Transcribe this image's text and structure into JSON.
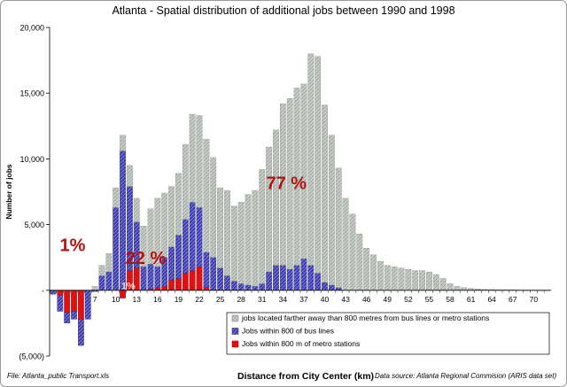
{
  "chart_data": {
    "type": "bar",
    "title": "Atlanta - Spatial distribution of additional jobs between 1990 and 1998",
    "xlabel": "Distance from City Center (km)",
    "ylabel": "Number of jobs",
    "ylim": [
      -5000,
      20000
    ],
    "yticks": [
      -5000,
      0,
      5000,
      10000,
      15000,
      20000
    ],
    "ytick_labels": [
      "(5,000)",
      "-",
      "5,000",
      "10,000",
      "15,000",
      "20,000"
    ],
    "xtick_labels": [
      "7",
      "10",
      "13",
      "16",
      "19",
      "22",
      "25",
      "28",
      "31",
      "34",
      "37",
      "40",
      "43",
      "46",
      "49",
      "52",
      "55",
      "58",
      "61",
      "64",
      "67",
      "70"
    ],
    "x_first_labeled_index": 6,
    "x_label_step": 3,
    "grid": false,
    "legend_position": "bottom-right",
    "stacked": true,
    "series": [
      {
        "name": "jobs located farther away than 800 metres from bus lines or metro stations",
        "color": "#c2c8c2",
        "values": [
          0,
          0,
          0,
          0,
          0,
          0,
          300,
          800,
          1400,
          1500,
          1200,
          1600,
          1800,
          3100,
          4200,
          5200,
          4900,
          4600,
          4700,
          5700,
          6700,
          7000,
          8600,
          7600,
          6100,
          6500,
          5700,
          6200,
          6900,
          7300,
          8700,
          9500,
          10300,
          12300,
          13000,
          13500,
          13300,
          16100,
          16500,
          13500,
          11400,
          9100,
          7000,
          5800,
          4300,
          3200,
          2700,
          2200,
          1900,
          1800,
          1700,
          1600,
          1500,
          1500,
          1400,
          1200,
          900,
          500,
          300,
          200,
          150,
          100,
          80,
          60,
          50,
          40,
          30,
          20,
          10,
          10,
          10,
          10
        ]
      },
      {
        "name": "Jobs within 800 of bus lines",
        "color": "#3b3aa6",
        "values": [
          -300,
          -1200,
          -800,
          -600,
          -2000,
          -2200,
          -100,
          1100,
          1400,
          6300,
          10600,
          6400,
          3500,
          1800,
          1900,
          1600,
          2200,
          2500,
          3300,
          4100,
          5200,
          4500,
          2700,
          2500,
          1700,
          1100,
          700,
          500,
          400,
          300,
          500,
          1400,
          1900,
          1900,
          1600,
          1900,
          2400,
          1900,
          1300,
          600,
          400,
          200,
          0,
          0,
          0,
          0,
          0,
          0,
          0,
          0,
          0,
          0,
          0,
          0,
          0,
          0,
          0,
          0,
          0,
          0,
          0,
          0,
          0,
          0,
          0,
          0,
          0,
          0,
          0,
          0,
          0,
          0
        ]
      },
      {
        "name": "Jobs within 800 m of metro stations",
        "color": "#dd1313",
        "values": [
          0,
          -400,
          -1700,
          -1600,
          -2200,
          0,
          0,
          0,
          0,
          0,
          -600,
          1500,
          1700,
          0,
          100,
          200,
          300,
          800,
          900,
          1300,
          1500,
          1800,
          200,
          0,
          0,
          0,
          0,
          0,
          0,
          0,
          0,
          0,
          0,
          0,
          0,
          0,
          0,
          0,
          0,
          0,
          0,
          0,
          0,
          0,
          0,
          0,
          0,
          0,
          0,
          0,
          0,
          0,
          0,
          0,
          0,
          0,
          0,
          0,
          0,
          0,
          0,
          0,
          0,
          0,
          0,
          0,
          0,
          0,
          0,
          0,
          0,
          0
        ]
      }
    ],
    "annotations": [
      {
        "text": "1%",
        "x_index": 2.8,
        "y": 3000,
        "color": "#b51010",
        "size": 20
      },
      {
        "text": "22 %",
        "x_index": 13.3,
        "y": 2000,
        "color": "#b51010",
        "size": 20
      },
      {
        "text": "77 %",
        "x_index": 33.5,
        "y": 7700,
        "color": "#b51010",
        "size": 20
      },
      {
        "text": "1%",
        "x_index": 10.8,
        "y": 100,
        "color": "#f3c8c8",
        "size": 11
      }
    ]
  },
  "footer": {
    "file": "File: Atlanta_public Transport.xls",
    "source": "Data source:  Atlanta Regional Commision (ARIS data set)"
  }
}
